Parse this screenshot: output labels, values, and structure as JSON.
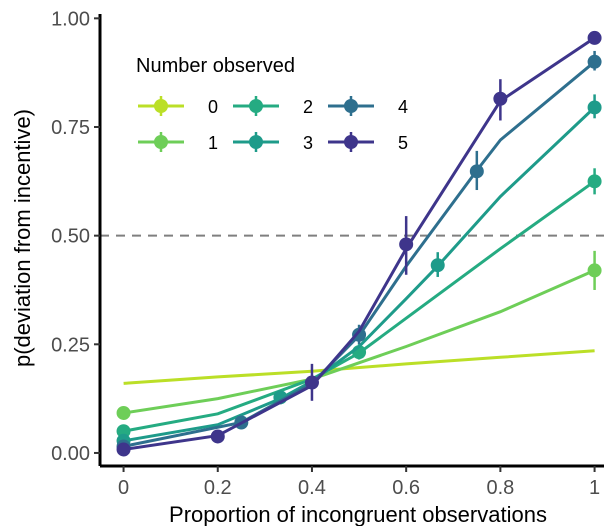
{
  "chart_data": {
    "type": "line",
    "xlabel": "Proportion of incongruent observations",
    "ylabel": "p(deviation from incentive)",
    "xlim": [
      -0.05,
      1.02
    ],
    "ylim": [
      -0.03,
      1.01
    ],
    "x_ticks": [
      0,
      0.2,
      0.4,
      0.6,
      0.8,
      1
    ],
    "x_tick_labels": [
      "0",
      "0.2",
      "0.4",
      "0.6",
      "0.8",
      "1"
    ],
    "y_ticks": [
      0,
      0.25,
      0.5,
      0.75,
      1
    ],
    "y_tick_labels": [
      "0.00",
      "0.25",
      "0.50",
      "0.75",
      "1.00"
    ],
    "reference_line": {
      "y": 0.5,
      "style": "dashed",
      "color": "#7f7f7f"
    },
    "grid": false,
    "legend": {
      "title": "Number observed",
      "position": "top-left",
      "columns": 3
    },
    "series": [
      {
        "name": "0",
        "color": "#BBDF27",
        "fit_x": [
          0,
          0.2,
          0.4,
          0.6,
          0.8,
          1
        ],
        "fit_y": [
          0.16,
          0.175,
          0.188,
          0.205,
          0.22,
          0.235
        ],
        "points": []
      },
      {
        "name": "1",
        "color": "#6ECE58",
        "fit_x": [
          0,
          0.2,
          0.4,
          0.6,
          0.8,
          1
        ],
        "fit_y": [
          0.092,
          0.125,
          0.17,
          0.245,
          0.325,
          0.42
        ],
        "points": [
          {
            "x": 0,
            "y": 0.092,
            "lo": 0.078,
            "hi": 0.106
          },
          {
            "x": 1,
            "y": 0.42,
            "lo": 0.375,
            "hi": 0.465
          }
        ]
      },
      {
        "name": "2",
        "color": "#25AB82",
        "fit_x": [
          0,
          0.2,
          0.4,
          0.5,
          0.6,
          0.8,
          1
        ],
        "fit_y": [
          0.05,
          0.09,
          0.17,
          0.23,
          0.31,
          0.47,
          0.625
        ],
        "points": [
          {
            "x": 0,
            "y": 0.05,
            "lo": 0.04,
            "hi": 0.06
          },
          {
            "x": 0.5,
            "y": 0.232,
            "lo": 0.215,
            "hi": 0.25
          },
          {
            "x": 1,
            "y": 0.625,
            "lo": 0.595,
            "hi": 0.655
          }
        ]
      },
      {
        "name": "3",
        "color": "#1E9B8A",
        "fit_x": [
          0,
          0.2,
          0.333,
          0.4,
          0.5,
          0.6,
          0.667,
          0.8,
          1
        ],
        "fit_y": [
          0.028,
          0.065,
          0.125,
          0.165,
          0.245,
          0.355,
          0.43,
          0.59,
          0.795
        ],
        "points": [
          {
            "x": 0,
            "y": 0.028,
            "lo": 0.02,
            "hi": 0.036
          },
          {
            "x": 0.333,
            "y": 0.128,
            "lo": 0.112,
            "hi": 0.144
          },
          {
            "x": 0.667,
            "y": 0.432,
            "lo": 0.405,
            "hi": 0.462
          },
          {
            "x": 1,
            "y": 0.795,
            "lo": 0.77,
            "hi": 0.825
          }
        ]
      },
      {
        "name": "4",
        "color": "#2E6F8E",
        "fit_x": [
          0,
          0.25,
          0.4,
          0.5,
          0.6,
          0.75,
          0.8,
          1
        ],
        "fit_y": [
          0.015,
          0.07,
          0.16,
          0.27,
          0.43,
          0.65,
          0.72,
          0.9
        ],
        "points": [
          {
            "x": 0,
            "y": 0.015,
            "lo": 0.008,
            "hi": 0.022
          },
          {
            "x": 0.25,
            "y": 0.07,
            "lo": 0.058,
            "hi": 0.082
          },
          {
            "x": 0.5,
            "y": 0.272,
            "lo": 0.25,
            "hi": 0.295
          },
          {
            "x": 0.75,
            "y": 0.648,
            "lo": 0.605,
            "hi": 0.695
          },
          {
            "x": 1,
            "y": 0.9,
            "lo": 0.88,
            "hi": 0.925
          }
        ]
      },
      {
        "name": "5",
        "color": "#3E358B",
        "fit_x": [
          0,
          0.2,
          0.4,
          0.5,
          0.6,
          0.7,
          0.8,
          1
        ],
        "fit_y": [
          0.008,
          0.04,
          0.155,
          0.28,
          0.47,
          0.64,
          0.81,
          0.955
        ],
        "points": [
          {
            "x": 0,
            "y": 0.008,
            "lo": 0.002,
            "hi": 0.014
          },
          {
            "x": 0.2,
            "y": 0.038,
            "lo": 0.03,
            "hi": 0.046
          },
          {
            "x": 0.4,
            "y": 0.162,
            "lo": 0.12,
            "hi": 0.205
          },
          {
            "x": 0.6,
            "y": 0.48,
            "lo": 0.41,
            "hi": 0.545
          },
          {
            "x": 0.8,
            "y": 0.815,
            "lo": 0.765,
            "hi": 0.86
          },
          {
            "x": 1,
            "y": 0.955,
            "lo": 0.94,
            "hi": 0.97
          }
        ]
      }
    ]
  }
}
